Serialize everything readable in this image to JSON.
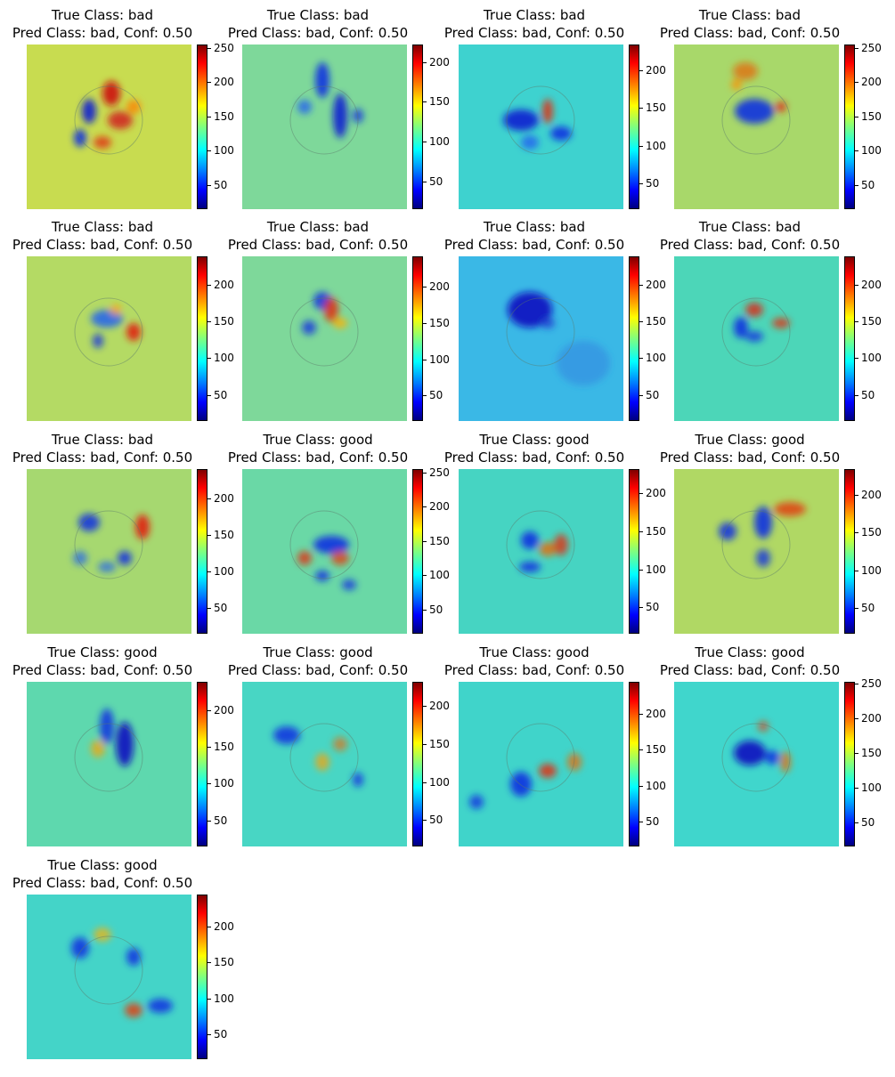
{
  "chart_data": [
    {
      "type": "heatmap",
      "title_lines": [
        "True Class: bad",
        "Pred Class: bad, Conf: 0.50"
      ],
      "colorbar": {
        "colormap": "jet",
        "range": [
          15,
          255
        ],
        "ticks": [
          50,
          100,
          150,
          200,
          250
        ]
      },
      "base_value": 165,
      "base_tint": "#c8dc50"
    },
    {
      "type": "heatmap",
      "title_lines": [
        "True Class: bad",
        "Pred Class: bad, Conf: 0.50"
      ],
      "colorbar": {
        "colormap": "jet",
        "range": [
          15,
          222
        ],
        "ticks": [
          50,
          100,
          150,
          200
        ]
      },
      "base_value": 135,
      "base_tint": "#7ed89a"
    },
    {
      "type": "heatmap",
      "title_lines": [
        "True Class: bad",
        "Pred Class: bad, Conf: 0.50"
      ],
      "colorbar": {
        "colormap": "jet",
        "range": [
          15,
          235
        ],
        "ticks": [
          50,
          100,
          150,
          200
        ]
      },
      "base_value": 120,
      "base_tint": "#3ed2cf"
    },
    {
      "type": "heatmap",
      "title_lines": [
        "True Class: bad",
        "Pred Class: bad, Conf: 0.50"
      ],
      "colorbar": {
        "colormap": "jet",
        "range": [
          15,
          255
        ],
        "ticks": [
          50,
          100,
          150,
          200,
          250
        ]
      },
      "base_value": 145,
      "base_tint": "#a8d86a"
    },
    {
      "type": "heatmap",
      "title_lines": [
        "True Class: bad",
        "Pred Class: bad, Conf: 0.50"
      ],
      "colorbar": {
        "colormap": "jet",
        "range": [
          15,
          238
        ],
        "ticks": [
          50,
          100,
          150,
          200
        ]
      },
      "base_value": 150,
      "base_tint": "#b4da64"
    },
    {
      "type": "heatmap",
      "title_lines": [
        "True Class: bad",
        "Pred Class: bad, Conf: 0.50"
      ],
      "colorbar": {
        "colormap": "jet",
        "range": [
          15,
          242
        ],
        "ticks": [
          50,
          100,
          150,
          200
        ]
      },
      "base_value": 135,
      "base_tint": "#7ed89a"
    },
    {
      "type": "heatmap",
      "title_lines": [
        "True Class: bad",
        "Pred Class: bad, Conf: 0.50"
      ],
      "colorbar": {
        "colormap": "jet",
        "range": [
          15,
          238
        ],
        "ticks": [
          50,
          100,
          150,
          200
        ]
      },
      "base_value": 115,
      "base_tint": "#3ab8e6"
    },
    {
      "type": "heatmap",
      "title_lines": [
        "True Class: bad",
        "Pred Class: bad, Conf: 0.50"
      ],
      "colorbar": {
        "colormap": "jet",
        "range": [
          15,
          238
        ],
        "ticks": [
          50,
          100,
          150,
          200
        ]
      },
      "base_value": 125,
      "base_tint": "#4cd6b8"
    },
    {
      "type": "heatmap",
      "title_lines": [
        "True Class: bad",
        "Pred Class: bad, Conf: 0.50"
      ],
      "colorbar": {
        "colormap": "jet",
        "range": [
          15,
          240
        ],
        "ticks": [
          50,
          100,
          150,
          200
        ]
      },
      "base_value": 145,
      "base_tint": "#a6d870"
    },
    {
      "type": "heatmap",
      "title_lines": [
        "True Class: good",
        "Pred Class: bad, Conf: 0.50"
      ],
      "colorbar": {
        "colormap": "jet",
        "range": [
          15,
          255
        ],
        "ticks": [
          50,
          100,
          150,
          200,
          250
        ]
      },
      "base_value": 130,
      "base_tint": "#6ad8a6"
    },
    {
      "type": "heatmap",
      "title_lines": [
        "True Class: good",
        "Pred Class: bad, Conf: 0.50"
      ],
      "colorbar": {
        "colormap": "jet",
        "range": [
          15,
          232
        ],
        "ticks": [
          50,
          100,
          150,
          200
        ]
      },
      "base_value": 120,
      "base_tint": "#46d4c2"
    },
    {
      "type": "heatmap",
      "title_lines": [
        "True Class: good",
        "Pred Class: bad, Conf: 0.50"
      ],
      "colorbar": {
        "colormap": "jet",
        "range": [
          15,
          235
        ],
        "ticks": [
          50,
          100,
          150,
          200
        ]
      },
      "base_value": 150,
      "base_tint": "#b0d864"
    },
    {
      "type": "heatmap",
      "title_lines": [
        "True Class: good",
        "Pred Class: bad, Conf: 0.50"
      ],
      "colorbar": {
        "colormap": "jet",
        "range": [
          15,
          238
        ],
        "ticks": [
          50,
          100,
          150,
          200
        ]
      },
      "base_value": 128,
      "base_tint": "#5ed8ae"
    },
    {
      "type": "heatmap",
      "title_lines": [
        "True Class: good",
        "Pred Class: bad, Conf: 0.50"
      ],
      "colorbar": {
        "colormap": "jet",
        "range": [
          15,
          232
        ],
        "ticks": [
          50,
          100,
          150,
          200
        ]
      },
      "base_value": 120,
      "base_tint": "#48d6c4"
    },
    {
      "type": "heatmap",
      "title_lines": [
        "True Class: good",
        "Pred Class: bad, Conf: 0.50"
      ],
      "colorbar": {
        "colormap": "jet",
        "range": [
          15,
          245
        ],
        "ticks": [
          50,
          100,
          150,
          200
        ]
      },
      "base_value": 118,
      "base_tint": "#40d4ca"
    },
    {
      "type": "heatmap",
      "title_lines": [
        "True Class: good",
        "Pred Class: bad, Conf: 0.50"
      ],
      "colorbar": {
        "colormap": "jet",
        "range": [
          15,
          252
        ],
        "ticks": [
          50,
          100,
          150,
          200,
          250
        ]
      },
      "base_value": 118,
      "base_tint": "#40d6cc"
    },
    {
      "type": "heatmap",
      "title_lines": [
        "True Class: good",
        "Pred Class: bad, Conf: 0.50"
      ],
      "colorbar": {
        "colormap": "jet",
        "range": [
          15,
          245
        ],
        "ticks": [
          50,
          100,
          150,
          200
        ]
      },
      "base_value": 118,
      "base_tint": "#44d4c8"
    }
  ]
}
